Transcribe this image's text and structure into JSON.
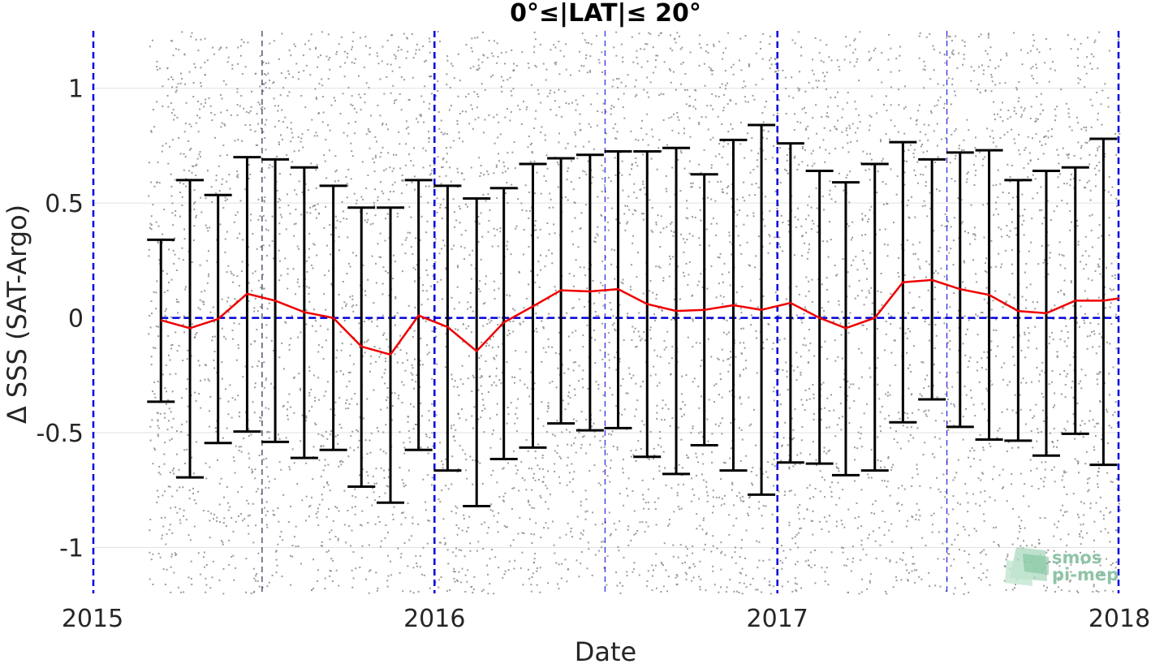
{
  "chart_data": {
    "type": "line",
    "title": "0°≤|LAT|≤ 20°",
    "xlabel": "Date",
    "ylabel": "Δ SSS (SAT-Argo)",
    "xlim": [
      "2015-01-01",
      "2018-01-01"
    ],
    "ylim": [
      -1.2,
      1.25
    ],
    "x_tick_labels": [
      "2015",
      "2016",
      "2017",
      "2018"
    ],
    "y_tick_labels": [
      "-1",
      "-0.5",
      "0",
      "0.5",
      "1"
    ],
    "y_ticks": [
      -1,
      -0.5,
      0,
      0.5,
      1
    ],
    "grid": true,
    "zero_line": {
      "y": 0,
      "color": "#0000dd",
      "style": "dashed"
    },
    "year_lines": [
      "2015-01-01",
      "2016-01-01",
      "2017-01-01",
      "2018-01-01"
    ],
    "half_year_lines": [
      "2015-07-01",
      "2016-07-01",
      "2017-07-01"
    ],
    "series": [
      {
        "kind": "mean",
        "color": "#ee0000",
        "x": [
          "2015-03-15",
          "2015-04-15",
          "2015-05-15",
          "2015-06-15",
          "2015-07-15",
          "2015-08-15",
          "2015-09-15",
          "2015-10-15",
          "2015-11-15",
          "2015-12-15",
          "2016-01-15",
          "2016-02-15",
          "2016-03-15",
          "2016-04-15",
          "2016-05-15",
          "2016-06-15",
          "2016-07-15",
          "2016-08-15",
          "2016-09-15",
          "2016-10-15",
          "2016-11-15",
          "2016-12-15",
          "2017-01-15",
          "2017-02-15",
          "2017-03-15",
          "2017-04-15",
          "2017-05-15",
          "2017-06-15",
          "2017-07-15",
          "2017-08-15",
          "2017-09-15",
          "2017-10-15",
          "2017-11-15",
          "2017-12-15",
          "2018-01-01"
        ],
        "values": [
          -0.01,
          -0.045,
          -0.005,
          0.105,
          0.075,
          0.025,
          0.0,
          -0.125,
          -0.16,
          0.01,
          -0.04,
          -0.145,
          -0.02,
          0.05,
          0.12,
          0.115,
          0.125,
          0.06,
          0.03,
          0.035,
          0.055,
          0.035,
          0.065,
          0.0,
          -0.045,
          0.0,
          0.155,
          0.165,
          0.125,
          0.1,
          0.03,
          0.02,
          0.075,
          0.075,
          0.085
        ]
      },
      {
        "kind": "error_bars",
        "color": "#000000",
        "x": [
          "2015-03-15",
          "2015-04-15",
          "2015-05-15",
          "2015-06-15",
          "2015-07-15",
          "2015-08-15",
          "2015-09-15",
          "2015-10-15",
          "2015-11-15",
          "2015-12-15",
          "2016-01-15",
          "2016-02-15",
          "2016-03-15",
          "2016-04-15",
          "2016-05-15",
          "2016-06-15",
          "2016-07-15",
          "2016-08-15",
          "2016-09-15",
          "2016-10-15",
          "2016-11-15",
          "2016-12-15",
          "2017-01-15",
          "2017-02-15",
          "2017-03-15",
          "2017-04-15",
          "2017-05-15",
          "2017-06-15",
          "2017-07-15",
          "2017-08-15",
          "2017-09-15",
          "2017-10-15",
          "2017-11-15",
          "2017-12-15"
        ],
        "upper": [
          0.34,
          0.6,
          0.535,
          0.7,
          0.69,
          0.655,
          0.575,
          0.48,
          0.48,
          0.6,
          0.575,
          0.52,
          0.565,
          0.67,
          0.695,
          0.71,
          0.725,
          0.725,
          0.74,
          0.625,
          0.775,
          0.84,
          0.76,
          0.64,
          0.59,
          0.67,
          0.765,
          0.69,
          0.72,
          0.73,
          0.6,
          0.64,
          0.655,
          0.78
        ],
        "lower": [
          -0.365,
          -0.695,
          -0.545,
          -0.495,
          -0.54,
          -0.61,
          -0.575,
          -0.735,
          -0.805,
          -0.575,
          -0.665,
          -0.82,
          -0.615,
          -0.565,
          -0.46,
          -0.49,
          -0.48,
          -0.605,
          -0.68,
          -0.555,
          -0.665,
          -0.77,
          -0.63,
          -0.635,
          -0.685,
          -0.665,
          -0.455,
          -0.355,
          -0.475,
          -0.53,
          -0.535,
          -0.6,
          -0.505,
          -0.64
        ]
      },
      {
        "kind": "scatter",
        "color": "#8a8a8a",
        "x_range": [
          "2015-03-01",
          "2018-01-01"
        ],
        "y_range": [
          -1.2,
          1.25
        ],
        "count": 6000
      }
    ]
  },
  "logo": {
    "line1": "smos",
    "line2": "pi-mep"
  }
}
